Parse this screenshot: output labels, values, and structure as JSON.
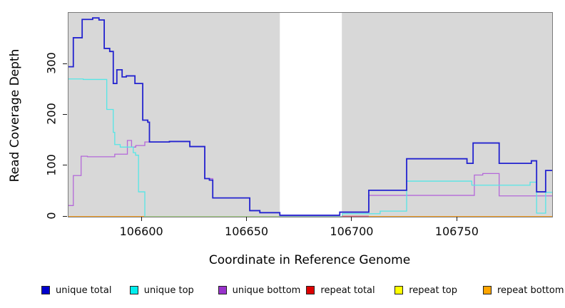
{
  "titles": {
    "x_axis": "Coordinate in Reference Genome",
    "y_axis": "Read Coverage Depth"
  },
  "colors": {
    "plot_background": "#d8d8d8",
    "gap_background": "#ffffff",
    "axis": "#1a1a1a",
    "box_border": "#7a7a7a"
  },
  "legend": {
    "items": [
      {
        "label": "unique total",
        "swatch": "#0000cd"
      },
      {
        "label": "unique top",
        "swatch": "#00eeee"
      },
      {
        "label": "unique bottom",
        "swatch": "#9932cc"
      },
      {
        "label": "repeat total",
        "swatch": "#dd0000"
      },
      {
        "label": "repeat top",
        "swatch": "#ffff00"
      },
      {
        "label": "repeat bottom",
        "swatch": "#ffa500"
      }
    ]
  },
  "chart_data": {
    "type": "line",
    "subtype": "step-coverage",
    "title": "",
    "xlabel": "Coordinate in Reference Genome",
    "ylabel": "Read Coverage Depth",
    "xlim": [
      106565,
      106795
    ],
    "ylim": [
      0,
      401
    ],
    "x_ticks": [
      106600,
      106650,
      106700,
      106750
    ],
    "y_ticks": [
      0,
      100,
      200,
      300
    ],
    "grid": false,
    "legend_position": "bottom",
    "gap_region": {
      "from": 106665.5,
      "to": 106695,
      "note": "no-data white band"
    },
    "series": [
      {
        "name": "repeat total",
        "color": "#dd0000",
        "width": 1.4,
        "points": [
          [
            106565,
            0
          ]
        ]
      },
      {
        "name": "repeat top",
        "color": "#ffff00",
        "width": 1.4,
        "points": [
          [
            106565,
            0
          ]
        ]
      },
      {
        "name": "repeat bottom",
        "color": "#ffa024",
        "width": 1.8,
        "points": [
          [
            106565,
            0
          ]
        ]
      },
      {
        "name": "unique bottom",
        "color": "#b468d9",
        "width": 1.3,
        "points": [
          [
            106565,
            22
          ],
          [
            106567.3,
            81
          ],
          [
            106571,
            119
          ],
          [
            106574,
            118
          ],
          [
            106587,
            123
          ],
          [
            106593,
            150
          ],
          [
            106595,
            137
          ],
          [
            106597,
            140
          ],
          [
            106601.3,
            147
          ],
          [
            106613,
            148
          ],
          [
            106622.7,
            138
          ],
          [
            106629.8,
            75
          ],
          [
            106633.6,
            37
          ],
          [
            106651.2,
            12
          ],
          [
            106656,
            8
          ],
          [
            106665.5,
            2
          ],
          [
            106694,
            9
          ],
          [
            106707.8,
            42
          ],
          [
            106758,
            82
          ],
          [
            106762,
            85
          ],
          [
            106769.8,
            41
          ]
        ]
      },
      {
        "name": "unique top",
        "color": "#55e6e6",
        "width": 1.3,
        "points": [
          [
            106565,
            271
          ],
          [
            106572,
            270
          ],
          [
            106583.2,
            211
          ],
          [
            106586.3,
            166
          ],
          [
            106587,
            142
          ],
          [
            106589.6,
            137
          ],
          [
            106595.8,
            126
          ],
          [
            106596.9,
            121
          ],
          [
            106598.3,
            49
          ],
          [
            106601.3,
            0
          ],
          [
            106695.2,
            6
          ],
          [
            106713.2,
            11
          ],
          [
            106725.8,
            70
          ],
          [
            106756.8,
            62
          ],
          [
            106784.5,
            68
          ],
          [
            106787.6,
            7
          ],
          [
            106791.9,
            48
          ]
        ]
      },
      {
        "name": "unique total",
        "color": "#2323cf",
        "width": 1.8,
        "points": [
          [
            106565,
            295
          ],
          [
            106567.3,
            352
          ],
          [
            106571.5,
            388
          ],
          [
            106576.5,
            391
          ],
          [
            106579.5,
            387
          ],
          [
            106582,
            331
          ],
          [
            106584.6,
            325
          ],
          [
            106586.3,
            262
          ],
          [
            106588,
            289
          ],
          [
            106590.5,
            275
          ],
          [
            106592.5,
            277
          ],
          [
            106596.6,
            262
          ],
          [
            106600.3,
            190
          ],
          [
            106602.7,
            186
          ],
          [
            106603.5,
            147
          ],
          [
            106613,
            148
          ],
          [
            106622.7,
            138
          ],
          [
            106629.8,
            75
          ],
          [
            106632,
            72
          ],
          [
            106633.6,
            37
          ],
          [
            106651.2,
            12
          ],
          [
            106656,
            8
          ],
          [
            106665.5,
            3
          ],
          [
            106694,
            9
          ],
          [
            106707.8,
            52
          ],
          [
            106725.8,
            114
          ],
          [
            106754.5,
            105
          ],
          [
            106757.4,
            145
          ],
          [
            106769.8,
            105
          ],
          [
            106785.1,
            110
          ],
          [
            106787.6,
            49
          ],
          [
            106791.9,
            91
          ]
        ]
      }
    ],
    "overlays": [
      {
        "name": "zero-line-green-segment",
        "color": "#9fdf9f",
        "width": 1.6,
        "y": 0,
        "from": 106601.3,
        "to": 106665.5
      },
      {
        "name": "zero-line-crimson-segment",
        "color": "#cc5577",
        "width": 1.2,
        "y": 1,
        "from": 106695,
        "to": 106707.8
      }
    ]
  }
}
